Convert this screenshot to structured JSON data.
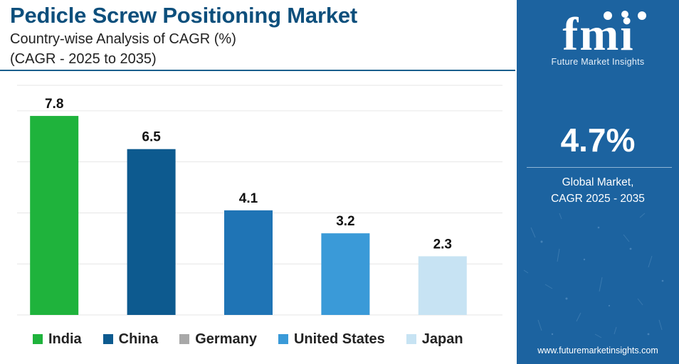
{
  "header": {
    "title": "Pedicle Screw Positioning Market",
    "subtitle": "Country-wise Analysis of CAGR (%)",
    "subtitle2": "(CAGR - 2025 to 2035)"
  },
  "chart_data": {
    "type": "bar",
    "categories": [
      "India",
      "China",
      "Germany",
      "United States",
      "Japan"
    ],
    "values": [
      7.8,
      6.5,
      4.1,
      3.2,
      2.3
    ],
    "bar_colors": [
      "#1fb33c",
      "#0d5a8f",
      "#1f74b5",
      "#3a9ad8",
      "#c7e3f3"
    ],
    "legend_colors": [
      "#1fb33c",
      "#0d5a8f",
      "#a8a8a8",
      "#3a9ad8",
      "#c7e3f3"
    ],
    "ylim": [
      0,
      9
    ],
    "grid": true,
    "legend_position": "bottom",
    "title": "",
    "xlabel": "",
    "ylabel": ""
  },
  "panel": {
    "logo_text": "fmi",
    "logo_subtitle": "Future Market Insights",
    "value": "4.7%",
    "label_line1": "Global Market,",
    "label_line2": "CAGR 2025 - 2035",
    "website": "www.futuremarketinsights.com",
    "background_color": "#1c63a0"
  }
}
